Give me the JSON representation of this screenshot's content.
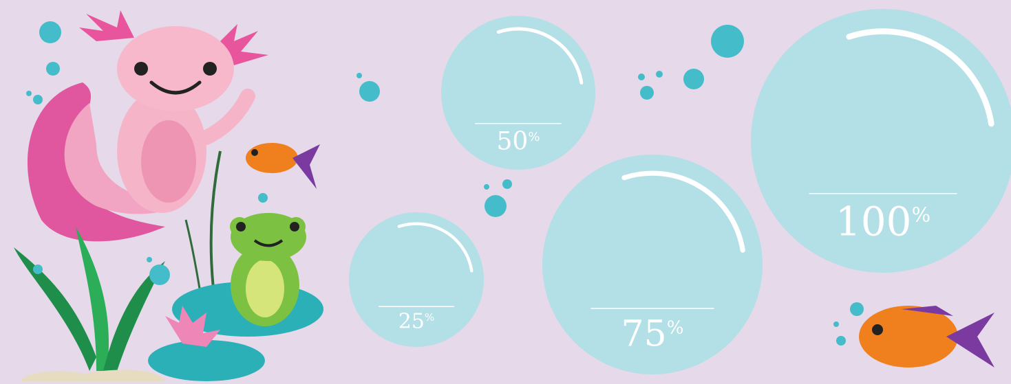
{
  "bubbles": [
    {
      "number": "50",
      "unit": "%"
    },
    {
      "number": "25",
      "unit": "%"
    },
    {
      "number": "75",
      "unit": "%"
    },
    {
      "number": "100",
      "unit": "%"
    }
  ]
}
